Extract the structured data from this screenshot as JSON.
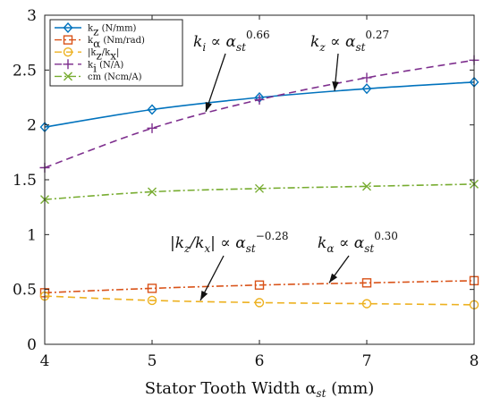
{
  "chart_data": {
    "type": "line",
    "xlabel": "Stator Tooth Width αst (mm)",
    "xlim": [
      4,
      8
    ],
    "ylim": [
      0,
      3
    ],
    "xticks": [
      4,
      5,
      6,
      7,
      8
    ],
    "yticks": [
      0,
      0.5,
      1,
      1.5,
      2,
      2.5,
      3
    ],
    "grid": false,
    "legend_position": "top-left",
    "x": [
      4,
      5,
      6,
      7,
      8
    ],
    "series": [
      {
        "name": "kz (N/mm)",
        "color": "#0072BD",
        "dash": "solid",
        "marker": "diamond",
        "values": [
          1.98,
          2.14,
          2.25,
          2.33,
          2.39
        ]
      },
      {
        "name": "kα (Nm/rad)",
        "color": "#D95319",
        "dash": "dashdot",
        "marker": "square",
        "values": [
          0.47,
          0.51,
          0.54,
          0.56,
          0.58
        ]
      },
      {
        "name": "|kz/kx|",
        "color": "#EDB120",
        "dash": "dashed",
        "marker": "circle",
        "values": [
          0.44,
          0.4,
          0.38,
          0.37,
          0.36
        ]
      },
      {
        "name": "ki (N/A)",
        "color": "#7E2F8E",
        "dash": "dashed",
        "marker": "plus",
        "values": [
          1.61,
          1.97,
          2.23,
          2.43,
          2.59
        ]
      },
      {
        "name": "cm (Ncm/A)",
        "color": "#77AC30",
        "dash": "dashdot",
        "marker": "x",
        "values": [
          1.32,
          1.39,
          1.42,
          1.44,
          1.46
        ]
      }
    ],
    "annotations": [
      {
        "text": "ki ∝ αst^0.66",
        "points_to_x": 5.5,
        "points_to_y": 2.12
      },
      {
        "text": "kz ∝ αst^0.27",
        "points_to_x": 6.7,
        "points_to_y": 2.31
      },
      {
        "text": "|kz/kx| ∝ αst^−0.28",
        "points_to_x": 5.45,
        "points_to_y": 0.4
      },
      {
        "text": "kα ∝ αst^0.30",
        "points_to_x": 6.65,
        "points_to_y": 0.56
      }
    ]
  }
}
